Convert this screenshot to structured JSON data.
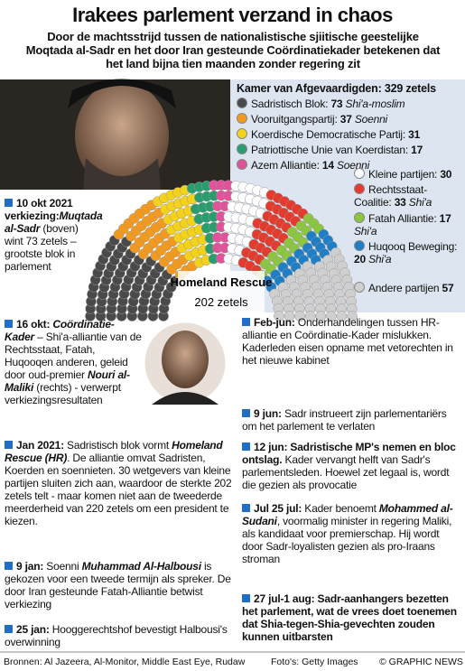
{
  "title": "Irakees parlement verzand in chaos",
  "subtitle": "Door de machtsstrijd tussen de nationalistische sjiitische geestelijke Moqtada al-Sadr en het door Iran gesteunde Coördinatiekader betekenen dat het land bijna tien maanden zonder regering zit",
  "parliament": {
    "title": "Kamer van Afgevaardigden: 329 zetels",
    "bloc_label": "Homeland Rescue",
    "bloc_seats": "202 zetels",
    "parties": [
      {
        "name": "Sadristisch Blok:",
        "seats": 73,
        "group": "Shi'a-moslim",
        "color": "#4a4a4a"
      },
      {
        "name": "Vooruitgangspartij:",
        "seats": 37,
        "group": "Soenni",
        "color": "#f39a1e"
      },
      {
        "name": "Koerdische Democratische Partij:",
        "seats": 31,
        "color": "#f5d21a"
      },
      {
        "name": "Patriottische Unie van Koerdistan:",
        "seats": 17,
        "color": "#2a9d6e"
      },
      {
        "name": "Azem Alliantie:",
        "seats": 14,
        "group": "Soenni",
        "color": "#e0529a"
      },
      {
        "name": "Kleine partijen:",
        "seats": 30,
        "color": "#ffffff"
      },
      {
        "name": "Rechtsstaat-Coalitie:",
        "seats": 33,
        "group": "Shi'a",
        "color": "#e53a2e"
      },
      {
        "name": "Fatah Alliantie:",
        "seats": 17,
        "group": "Shi'a",
        "color": "#8cc63f"
      },
      {
        "name": "Huqooq Beweging:",
        "seats": 20,
        "group": "Shi'a",
        "color": "#1f7fc6"
      },
      {
        "name": "Andere partijen",
        "seats": 57,
        "color": "#cfcfcf"
      }
    ]
  },
  "timeline": [
    {
      "date": "10 okt 2021 verkiezing:",
      "segments": [
        {
          "text": "Muqtada al-Sadr",
          "style": "bi"
        },
        {
          "text": " (boven) wint 73 zetels – grootste blok in parlement",
          "style": "n"
        }
      ]
    },
    {
      "date": "16 okt:",
      "segments": [
        {
          "text": " Coördinatie-Kader",
          "style": "bi"
        },
        {
          "text": " – Shi'a-alliantie van de Rechtsstaat, Fatah, Huqooqen anderen, geleid door oud-premier ",
          "style": "n"
        },
        {
          "text": "Nouri al-Maliki",
          "style": "bi"
        },
        {
          "text": " (rechts) - verwerpt verkiezingsresultaten",
          "style": "n"
        }
      ]
    },
    {
      "date": "Jan 2021:",
      "segments": [
        {
          "text": " Sadristisch blok vormt ",
          "style": "n"
        },
        {
          "text": "Homeland Rescue (HR)",
          "style": "bi"
        },
        {
          "text": ". De alliantie omvat Sadristen, Koerden en soennieten. 30 wetgevers van kleine partijen sluiten zich aan, waardoor de sterkte 202 zetels telt - maar komen niet aan de tweederde meerderheid van 220 zetels om een president te kiezen.",
          "style": "n"
        }
      ]
    },
    {
      "date": "9 jan:",
      "segments": [
        {
          "text": " Soenni ",
          "style": "n"
        },
        {
          "text": "Muhammad Al-Halbousi",
          "style": "bi"
        },
        {
          "text": " is gekozen voor een tweede termijn als spreker. De door Iran gesteunde Fatah-Alliantie betwist verkiezing",
          "style": "n"
        }
      ]
    },
    {
      "date": "25 jan:",
      "segments": [
        {
          "text": " Hooggerechtshof bevestigt Halbousi's overwinning",
          "style": "n"
        }
      ]
    },
    {
      "date": "Feb-jun:",
      "segments": [
        {
          "text": " Onderhandelingen tussen HR-alliantie en Coördinatie-Kader mislukken. Kaderleden eisen opname met vetorechten in het nieuwe kabinet",
          "style": "n"
        }
      ]
    },
    {
      "date": "9 jun:",
      "segments": [
        {
          "text": " Sadr instrueert zijn parlementariërs om het parlement te verlaten",
          "style": "n"
        }
      ]
    },
    {
      "date": "12 jun: Sadristische MP's nemen en bloc ontslag.",
      "segments": [
        {
          "text": " Kader vervangt helft van Sadr's parlementsleden. Hoewel zet legaal is, wordt die gezien als provocatie",
          "style": "n"
        }
      ]
    },
    {
      "date": "Jul 25 jul:",
      "segments": [
        {
          "text": " Kader benoemt ",
          "style": "n"
        },
        {
          "text": "Mohammed al-Sudani",
          "style": "bi"
        },
        {
          "text": ", voormalig minister in regering Maliki, als kandidaat voor premierschap. Hij wordt door Sadr-loyalisten gezien als pro-Iraans stroman",
          "style": "n"
        }
      ]
    },
    {
      "date": "27 jul-1 aug: Sadr-aanhangers bezetten het parlement, wat de vrees doet toenemen dat Shia-tegen-Shia-gevechten zouden kunnen uitbarsten",
      "segments": []
    }
  ],
  "footer": {
    "sources": "Bronnen: Al Jazeera, Al-Monitor, Middle East Eye, Rudaw",
    "photos": "Foto's: Getty Images",
    "credit": "© GRAPHIC NEWS"
  }
}
